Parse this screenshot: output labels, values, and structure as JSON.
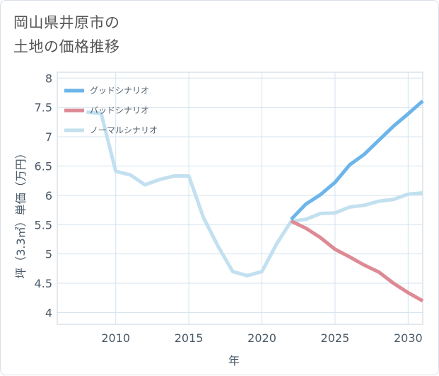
{
  "title_lines": [
    "岡山県井原市の",
    "土地の価格推移"
  ],
  "chart_data": {
    "type": "line",
    "title": "岡山県井原市の土地の価格推移",
    "xlabel": "年",
    "ylabel": "坪（3.3㎡）単価（万円）",
    "xlim": [
      2006,
      2031
    ],
    "ylim": [
      3.8,
      8.1
    ],
    "xticks": [
      2010,
      2015,
      2020,
      2025,
      2030
    ],
    "xtick_labels": [
      "2010",
      "2015",
      "2020",
      "2025",
      "2030"
    ],
    "yticks": [
      4,
      4.5,
      5,
      5.5,
      6,
      6.5,
      7,
      7.5,
      8
    ],
    "ytick_labels": [
      "4",
      "4.5",
      "5",
      "5.5",
      "6",
      "6.5",
      "7",
      "7.5",
      "8"
    ],
    "grid": true,
    "legend_position": "top-left",
    "series": [
      {
        "name": "グッドシナリオ",
        "color": "#6bb5ea",
        "x": [
          2022,
          2023,
          2024,
          2025,
          2026,
          2027,
          2028,
          2029,
          2030,
          2031
        ],
        "values": [
          5.59,
          5.85,
          6.01,
          6.22,
          6.52,
          6.7,
          6.94,
          7.18,
          7.39,
          7.61
        ]
      },
      {
        "name": "バッドシナリオ",
        "color": "#dd8a94",
        "x": [
          2022,
          2023,
          2024,
          2025,
          2026,
          2027,
          2028,
          2029,
          2030,
          2031
        ],
        "values": [
          5.56,
          5.44,
          5.28,
          5.08,
          4.95,
          4.81,
          4.69,
          4.5,
          4.34,
          4.2
        ]
      },
      {
        "name": "ノーマルシナリオ",
        "color": "#c2e0ef",
        "x": [
          2008,
          2009,
          2010,
          2011,
          2012,
          2013,
          2014,
          2015,
          2016,
          2017,
          2018,
          2019,
          2020,
          2021,
          2022,
          2023,
          2024,
          2025,
          2026,
          2027,
          2028,
          2029,
          2030,
          2031
        ],
        "values": [
          7.42,
          7.4,
          6.41,
          6.35,
          6.18,
          6.27,
          6.33,
          6.33,
          5.62,
          5.13,
          4.7,
          4.63,
          4.7,
          5.17,
          5.56,
          5.59,
          5.69,
          5.7,
          5.8,
          5.83,
          5.9,
          5.93,
          6.02,
          6.04
        ]
      }
    ]
  }
}
